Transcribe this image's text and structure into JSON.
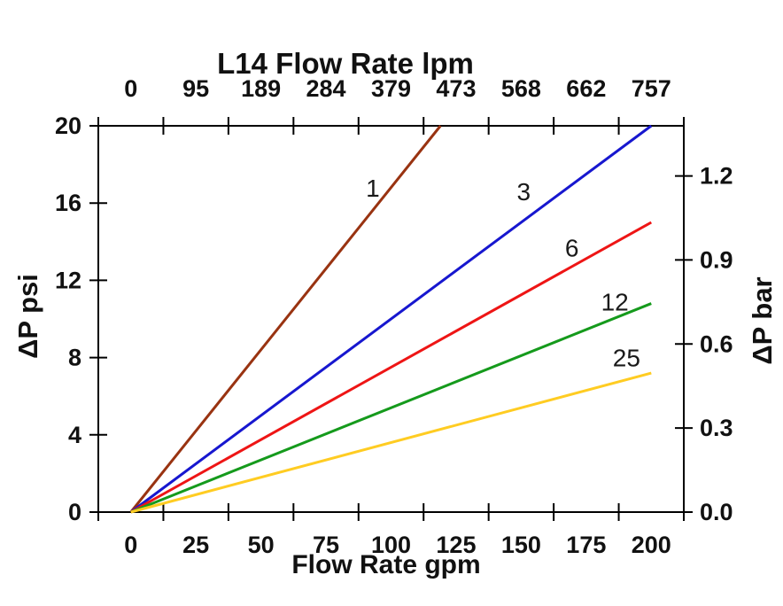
{
  "chart_data": {
    "type": "line",
    "top_axis": {
      "title": "L14 Flow Rate lpm",
      "unit": "lpm",
      "tick_labels": [
        "0",
        "95",
        "189",
        "284",
        "379",
        "473",
        "568",
        "662",
        "757"
      ]
    },
    "bottom_axis": {
      "title": "Flow Rate gpm",
      "unit": "gpm",
      "tick_labels": [
        "0",
        "25",
        "50",
        "75",
        "100",
        "125",
        "150",
        "175",
        "200"
      ],
      "label_values_gpm": [
        0,
        25,
        50,
        75,
        100,
        125,
        150,
        175,
        200
      ],
      "xlim_gpm": [
        -12.5,
        212.5
      ],
      "tick_step_gpm": 25
    },
    "left_axis": {
      "title": "ΔP psi",
      "unit": "psi",
      "tick_labels": [
        "0",
        "4",
        "8",
        "12",
        "16",
        "20"
      ],
      "tick_values_psi": [
        0,
        4,
        8,
        12,
        16,
        20
      ],
      "range_psi": [
        0,
        20
      ]
    },
    "right_axis": {
      "title": "ΔP bar",
      "unit": "bar",
      "tick_labels": [
        "0.0",
        "0.3",
        "0.6",
        "0.9",
        "1.2"
      ],
      "tick_values_bar": [
        0.0,
        0.3,
        0.6,
        0.9,
        1.2
      ]
    },
    "grid": false,
    "legend": "inline-curve-labels",
    "axis_color": "#000000",
    "text_color": "#111111",
    "series": [
      {
        "label": "1",
        "color": "#993311",
        "points_gpm_psi": [
          [
            0,
            0
          ],
          [
            119,
            20
          ]
        ],
        "label_at_gpm_psi": [
          93,
          16.8
        ]
      },
      {
        "label": "3",
        "color": "#1717CF",
        "points_gpm_psi": [
          [
            0,
            0
          ],
          [
            200,
            20
          ]
        ],
        "label_at_gpm_psi": [
          151,
          16.6
        ]
      },
      {
        "label": "6",
        "color": "#EE1515",
        "points_gpm_psi": [
          [
            0,
            0
          ],
          [
            200,
            15
          ]
        ],
        "label_at_gpm_psi": [
          169.5,
          13.7
        ]
      },
      {
        "label": "12",
        "color": "#159A1C",
        "points_gpm_psi": [
          [
            0,
            0
          ],
          [
            200,
            10.8
          ]
        ],
        "label_at_gpm_psi": [
          186,
          10.9
        ]
      },
      {
        "label": "25",
        "color": "#FFCC22",
        "points_gpm_psi": [
          [
            0,
            0
          ],
          [
            200,
            7.2
          ]
        ],
        "label_at_gpm_psi": [
          190.5,
          8.0
        ]
      }
    ]
  }
}
